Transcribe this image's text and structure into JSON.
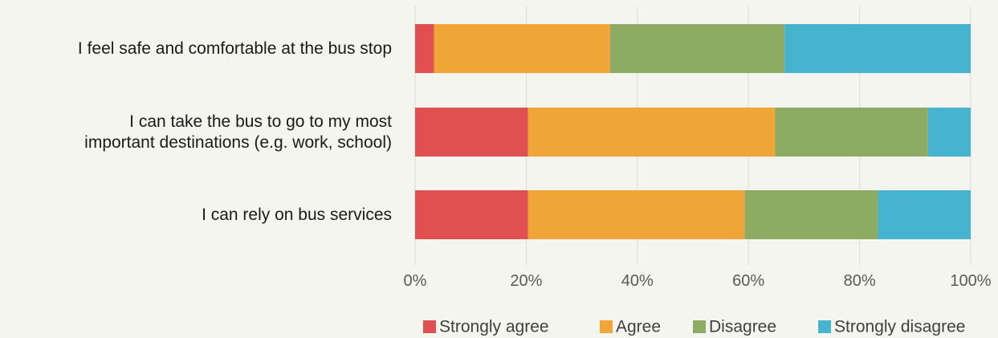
{
  "chart_data": {
    "type": "bar",
    "orientation": "horizontal",
    "stacked": "percent",
    "title": "",
    "xlabel": "",
    "ylabel": "",
    "categories": [
      [
        "I feel safe and comfortable at the bus stop"
      ],
      [
        "I can take the bus to go to my most",
        "important destinations (e.g. work, school)"
      ],
      [
        "I can rely on bus services"
      ]
    ],
    "series": [
      {
        "name": "Strongly agree",
        "color": "#e05050",
        "values": [
          3.4,
          20.3,
          20.3
        ]
      },
      {
        "name": "Agree",
        "color": "#f0a538",
        "values": [
          31.7,
          44.5,
          39.0
        ]
      },
      {
        "name": "Disagree",
        "color": "#8dab62",
        "values": [
          31.4,
          27.5,
          24.0
        ]
      },
      {
        "name": "Strongly disagree",
        "color": "#47b4cf",
        "values": [
          33.5,
          7.7,
          16.7
        ]
      }
    ],
    "xlim": [
      0,
      100
    ],
    "xticks": [
      "0%",
      "20%",
      "40%",
      "60%",
      "80%",
      "100%"
    ],
    "grid": true,
    "legend_position": "bottom"
  }
}
